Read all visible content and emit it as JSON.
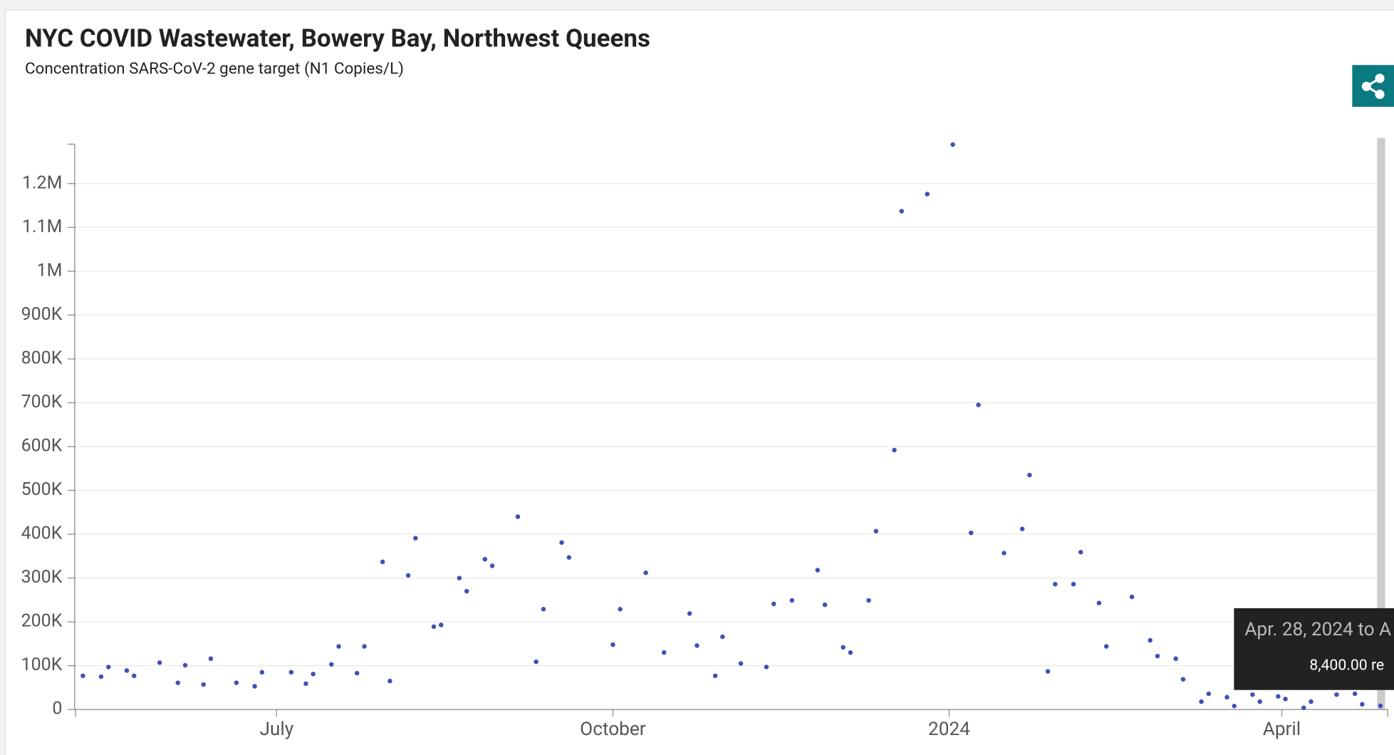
{
  "chart_data": {
    "type": "scatter",
    "title": "NYC COVID Wastewater, Bowery Bay, Northwest Queens",
    "subtitle": "Concentration SARS-CoV-2 gene target (N1 Copies/L)",
    "color": "#3f51b5",
    "x": [
      "2023-05-09",
      "2023-05-14",
      "2023-05-16",
      "2023-05-21",
      "2023-05-23",
      "2023-05-30",
      "2023-06-04",
      "2023-06-06",
      "2023-06-11",
      "2023-06-13",
      "2023-06-20",
      "2023-06-25",
      "2023-06-27",
      "2023-07-05",
      "2023-07-09",
      "2023-07-11",
      "2023-07-16",
      "2023-07-18",
      "2023-07-23",
      "2023-07-25",
      "2023-07-30",
      "2023-08-01",
      "2023-08-06",
      "2023-08-08",
      "2023-08-13",
      "2023-08-15",
      "2023-08-20",
      "2023-08-22",
      "2023-08-27",
      "2023-08-29",
      "2023-09-05",
      "2023-09-10",
      "2023-09-12",
      "2023-09-17",
      "2023-09-19",
      "2023-10-01",
      "2023-10-03",
      "2023-10-10",
      "2023-10-15",
      "2023-10-22",
      "2023-10-24",
      "2023-10-29",
      "2023-10-31",
      "2023-11-05",
      "2023-11-12",
      "2023-11-14",
      "2023-11-19",
      "2023-11-26",
      "2023-11-28",
      "2023-12-03",
      "2023-12-05",
      "2023-12-10",
      "2023-12-12",
      "2023-12-17",
      "2023-12-19",
      "2023-12-26",
      "2024-01-02",
      "2024-01-07",
      "2024-01-09",
      "2024-01-16",
      "2024-01-21",
      "2024-01-23",
      "2024-01-28",
      "2024-01-30",
      "2024-02-04",
      "2024-02-06",
      "2024-02-11",
      "2024-02-13",
      "2024-02-20",
      "2024-02-25",
      "2024-02-27",
      "2024-03-03",
      "2024-03-05",
      "2024-03-10",
      "2024-03-12",
      "2024-03-17",
      "2024-03-19",
      "2024-03-24",
      "2024-03-26",
      "2024-03-31",
      "2024-04-02",
      "2024-04-07",
      "2024-04-09",
      "2024-04-16",
      "2024-04-21",
      "2024-04-23",
      "2024-04-28"
    ],
    "values": [
      77000,
      75000,
      97000,
      89000,
      77000,
      107000,
      61000,
      101000,
      57000,
      116000,
      61000,
      53000,
      85000,
      85000,
      59000,
      81000,
      103000,
      144000,
      83000,
      144000,
      337000,
      65000,
      306000,
      391000,
      189000,
      193000,
      300000,
      270000,
      343000,
      328000,
      440000,
      109000,
      229000,
      381000,
      347000,
      148000,
      229000,
      312000,
      130000,
      219000,
      146000,
      77000,
      166000,
      105000,
      97000,
      241000,
      249000,
      318000,
      239000,
      142000,
      130000,
      249000,
      407000,
      592000,
      1137000,
      1176000,
      1289000,
      403000,
      695000,
      357000,
      412000,
      535000,
      87000,
      286000,
      286000,
      359000,
      243000,
      144000,
      257000,
      158000,
      122000,
      116000,
      69000,
      18000,
      36000,
      28000,
      8000,
      34000,
      18000,
      30000,
      24000,
      4000,
      18000,
      34000,
      36000,
      12000,
      8400
    ],
    "xlim": [
      "2023-05-07",
      "2024-04-30"
    ],
    "xticks": [
      {
        "value": "2023-07-01",
        "label": "July"
      },
      {
        "value": "2023-10-01",
        "label": "October"
      },
      {
        "value": "2024-01-01",
        "label": "2024"
      },
      {
        "value": "2024-04-01",
        "label": "April"
      }
    ],
    "ylim": [
      0,
      1290000
    ],
    "yticks": [
      0,
      {
        "value": 100000,
        "label": "100K"
      },
      {
        "value": 200000,
        "label": "200K"
      },
      {
        "value": 300000,
        "label": "300K"
      },
      {
        "value": 400000,
        "label": "400K"
      },
      {
        "value": 500000,
        "label": "500K"
      },
      {
        "value": 600000,
        "label": "600K"
      },
      {
        "value": 700000,
        "label": "700K"
      },
      {
        "value": 800000,
        "label": "800K"
      },
      {
        "value": 900000,
        "label": "900K"
      },
      {
        "value": 1000000,
        "label": "1M"
      },
      {
        "value": 1100000,
        "label": "1.1M"
      },
      {
        "value": 1200000,
        "label": "1.2M"
      }
    ],
    "grid": true
  },
  "tooltip": {
    "title": "Apr. 28, 2024 to A",
    "text": "8,400.00 re"
  }
}
